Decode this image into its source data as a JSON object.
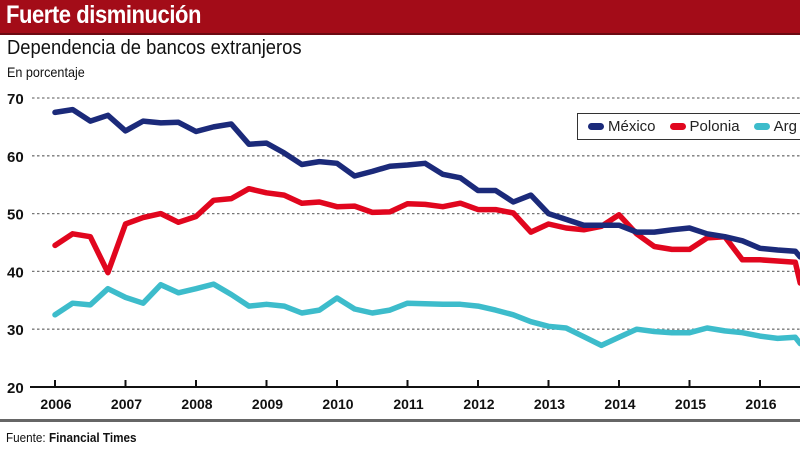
{
  "header": {
    "title": "Fuerte disminución"
  },
  "chart_data": {
    "type": "line",
    "title": "Dependencia de bancos extranjeros",
    "ylabel": "En porcentaje",
    "xlabel": "",
    "ylim": [
      20,
      70
    ],
    "xlim": [
      2005.65,
      2016.57
    ],
    "yticks": [
      20,
      30,
      40,
      50,
      60,
      70
    ],
    "xticks": [
      "2006",
      "2007",
      "2008",
      "2009",
      "2010",
      "2011",
      "2012",
      "2013",
      "2014",
      "2015",
      "2016"
    ],
    "grid": true,
    "legend_position": "top-right",
    "x": [
      2006,
      2006.25,
      2006.5,
      2006.75,
      2007,
      2007.25,
      2007.5,
      2007.75,
      2008,
      2008.25,
      2008.5,
      2008.75,
      2009,
      2009.25,
      2009.5,
      2009.75,
      2010,
      2010.25,
      2010.5,
      2010.75,
      2011,
      2011.25,
      2011.5,
      2011.75,
      2012,
      2012.25,
      2012.5,
      2012.75,
      2013,
      2013.25,
      2013.5,
      2013.75,
      2014,
      2014.25,
      2014.5,
      2014.75,
      2015,
      2015.25,
      2015.5,
      2015.75,
      2016,
      2016.25,
      2016.5,
      2016.57
    ],
    "series": [
      {
        "name": "México",
        "color": "#1b2a7a",
        "values": [
          67.5,
          68,
          66,
          67,
          64.3,
          66,
          65.7,
          65.8,
          64.2,
          65,
          65.5,
          62,
          62.2,
          60.5,
          58.5,
          59,
          58.7,
          56.5,
          57.3,
          58.2,
          58.4,
          58.7,
          56.8,
          56.2,
          54,
          54,
          52,
          53.2,
          50,
          49,
          48,
          48,
          48,
          46.8,
          46.8,
          47.2,
          47.5,
          46.5,
          46,
          45.3,
          44,
          43.7,
          43.5,
          42.5
        ]
      },
      {
        "name": "Polonia",
        "color": "#e1061e",
        "values": [
          44.5,
          46.5,
          46,
          39.8,
          48.2,
          49.3,
          50,
          48.5,
          49.5,
          52.3,
          52.6,
          54.3,
          53.6,
          53.2,
          51.8,
          52,
          51.2,
          51.3,
          50.2,
          50.3,
          51.7,
          51.6,
          51.2,
          51.8,
          50.7,
          50.7,
          50.1,
          46.8,
          48.2,
          47.5,
          47.2,
          47.8,
          49.8,
          46.5,
          44.3,
          43.8,
          43.8,
          45.8,
          46,
          42,
          42,
          41.8,
          41.6,
          38
        ]
      },
      {
        "name": "Argentina",
        "label": "Arg",
        "color": "#3dbccb",
        "values": [
          32.5,
          34.5,
          34.2,
          37,
          35.5,
          34.5,
          37.7,
          36.3,
          37,
          37.8,
          36,
          34,
          34.3,
          34,
          32.8,
          33.3,
          35.4,
          33.5,
          32.8,
          33.3,
          34.5,
          34.4,
          34.3,
          34.3,
          34,
          33.3,
          32.5,
          31.3,
          30.5,
          30.2,
          28.7,
          27.2,
          28.6,
          30,
          29.6,
          29.4,
          29.4,
          30.2,
          29.7,
          29.4,
          28.8,
          28.4,
          28.6,
          27.5
        ]
      }
    ]
  },
  "footer": {
    "source_label": "Fuente:",
    "source": "Financial Times"
  }
}
